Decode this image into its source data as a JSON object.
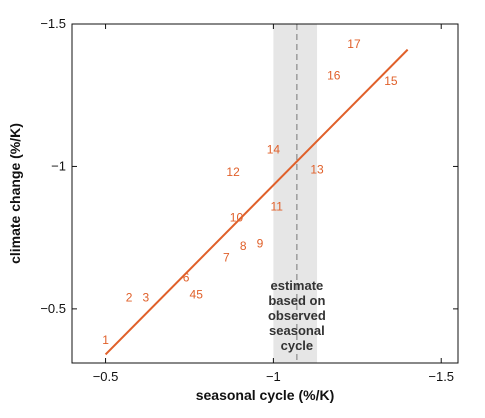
{
  "chart_data": {
    "type": "scatter",
    "xlabel": "seasonal cycle (%/K)",
    "ylabel": "climate change (%/K)",
    "xlim": [
      -0.4,
      -1.55
    ],
    "ylim": [
      -0.31,
      -1.5
    ],
    "x_ticks": [
      -0.5,
      -1,
      -1.5
    ],
    "x_tick_labels": [
      "-0.5",
      "-1",
      "-1.5"
    ],
    "y_ticks": [
      -0.5,
      -1,
      -1.5
    ],
    "y_tick_labels": [
      "-0.5",
      "-1",
      "-1.5"
    ],
    "grid": false,
    "points": [
      {
        "label": "1",
        "x": -0.5,
        "y": -0.39
      },
      {
        "label": "2",
        "x": -0.57,
        "y": -0.54
      },
      {
        "label": "3",
        "x": -0.62,
        "y": -0.54
      },
      {
        "label": "4",
        "x": -0.76,
        "y": -0.55
      },
      {
        "label": "5",
        "x": -0.78,
        "y": -0.55
      },
      {
        "label": "6",
        "x": -0.74,
        "y": -0.61
      },
      {
        "label": "7",
        "x": -0.86,
        "y": -0.68
      },
      {
        "label": "8",
        "x": -0.91,
        "y": -0.72
      },
      {
        "label": "9",
        "x": -0.96,
        "y": -0.73
      },
      {
        "label": "10",
        "x": -0.89,
        "y": -0.82
      },
      {
        "label": "11",
        "x": -1.01,
        "y": -0.86
      },
      {
        "label": "12",
        "x": -0.88,
        "y": -0.98
      },
      {
        "label": "13",
        "x": -1.13,
        "y": -0.99
      },
      {
        "label": "14",
        "x": -1.0,
        "y": -1.06
      },
      {
        "label": "15",
        "x": -1.35,
        "y": -1.3
      },
      {
        "label": "16",
        "x": -1.18,
        "y": -1.32
      },
      {
        "label": "17",
        "x": -1.24,
        "y": -1.43
      }
    ],
    "fit_line": {
      "x": [
        -0.5,
        -1.4
      ],
      "y": [
        -0.34,
        -1.41
      ],
      "color": "#e0602a"
    },
    "estimate_band": {
      "x_center": -1.07,
      "x_range": [
        -1.0,
        -1.13
      ],
      "color": "#e6e6e6"
    },
    "annotation": [
      "estimate",
      "based on",
      "observed",
      "seasonal",
      "cycle"
    ],
    "point_color": "#e0602a"
  }
}
